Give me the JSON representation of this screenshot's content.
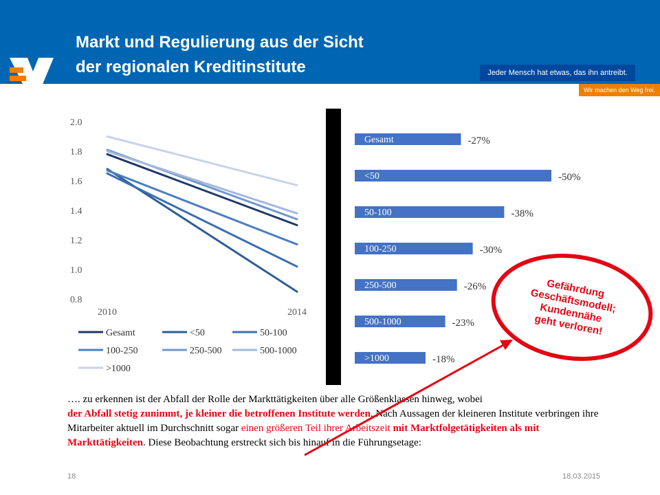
{
  "slide": {
    "title_line1": "Markt und Regulierung aus der Sicht",
    "title_line2": "der regionalen Kreditinstitute",
    "slogan": "Jeder Mensch hat etwas, das ihn antreibt.",
    "slogan_red": "Wir machen den Weg frei.",
    "page_number": "18",
    "date": "18.03.2015",
    "colors": {
      "header": "#0066b3",
      "dark_blue": "#00489d",
      "orange": "#ee7f00",
      "red": "#e30613"
    }
  },
  "callout": {
    "lines": [
      "Gefährdung",
      "Geschäftsmodell;",
      "Kundennähe",
      "geht verloren!"
    ]
  },
  "body": {
    "t1": "…. zu erkennen ist der Abfall der Rolle der Markttätigkeiten über alle Größenklassen hinweg, wobei",
    "t2": "der Abfall stetig zunimmt, je kleiner die betroffenen Institute werden",
    "t3": ". Nach Aussagen der kleineren Institute verbringen ihre Mitarbeiter aktuell im Durchschnitt sogar ",
    "t4": "einen größeren Teil ihrer Arbeitszeit",
    "t5": " ",
    "t6": "mit Marktfolgetätigkeiten als mit Markttätigkeiten",
    "t7": ". Diese Beobachtung erstreckt sich bis hinauf in die Führungsetage:"
  },
  "chart_data": [
    {
      "type": "line",
      "x": [
        "2010",
        "2014"
      ],
      "ylim": [
        0.8,
        2.0
      ],
      "yticks": [
        "2.0",
        "1.8",
        "1.6",
        "1.4",
        "1.2",
        "1.0",
        "0.8"
      ],
      "grid": false,
      "legend": "bottom",
      "series": [
        {
          "name": "Gesamt",
          "values": [
            1.78,
            1.3
          ],
          "color": "#1f3864"
        },
        {
          "name": "<50",
          "values": [
            1.68,
            0.85
          ],
          "color": "#2e5d98"
        },
        {
          "name": "50-100",
          "values": [
            1.65,
            1.02
          ],
          "color": "#3a6fb0"
        },
        {
          "name": "100-250",
          "values": [
            1.67,
            1.17
          ],
          "color": "#4c7ec0"
        },
        {
          "name": "250-500",
          "values": [
            1.81,
            1.34
          ],
          "color": "#7297cc"
        },
        {
          "name": "500-1000",
          "values": [
            1.8,
            1.38
          ],
          "color": "#a3b8dc"
        },
        {
          "name": ">1000",
          "values": [
            1.9,
            1.57
          ],
          "color": "#c8d3e8"
        }
      ]
    },
    {
      "type": "bar",
      "orientation": "horizontal",
      "categories": [
        "Gesamt",
        "<50",
        "50-100",
        "100-250",
        "250-500",
        "500-1000",
        ">1000"
      ],
      "values": [
        -27,
        -50,
        -38,
        -30,
        -26,
        -23,
        -18
      ],
      "labels": [
        "-27%",
        "-50%",
        "-38%",
        "-30%",
        "-26%",
        "-23%",
        "-18%"
      ],
      "color": "#4472c4"
    }
  ]
}
